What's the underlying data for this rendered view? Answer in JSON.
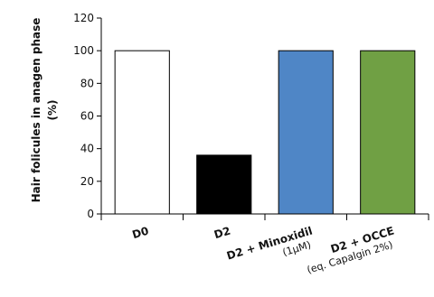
{
  "chart_data": {
    "type": "bar",
    "title": "",
    "ylabel": "Hair folicules in anagen phase (%)",
    "xlabel": "",
    "ylim": [
      0,
      120
    ],
    "yticks": [
      0,
      20,
      40,
      60,
      80,
      100,
      120
    ],
    "grid": false,
    "categories": [
      {
        "label": "D0",
        "sublabel": ""
      },
      {
        "label": "D2",
        "sublabel": ""
      },
      {
        "label": "D2 + Minoxidil",
        "sublabel": "(1μM)"
      },
      {
        "label": "D2 + OCCE",
        "sublabel": "(eq. Capalgin 2%)"
      }
    ],
    "values": [
      100,
      36,
      100,
      100
    ],
    "colors": [
      "#ffffff",
      "#000000",
      "#4f86c6",
      "#70a044"
    ]
  }
}
